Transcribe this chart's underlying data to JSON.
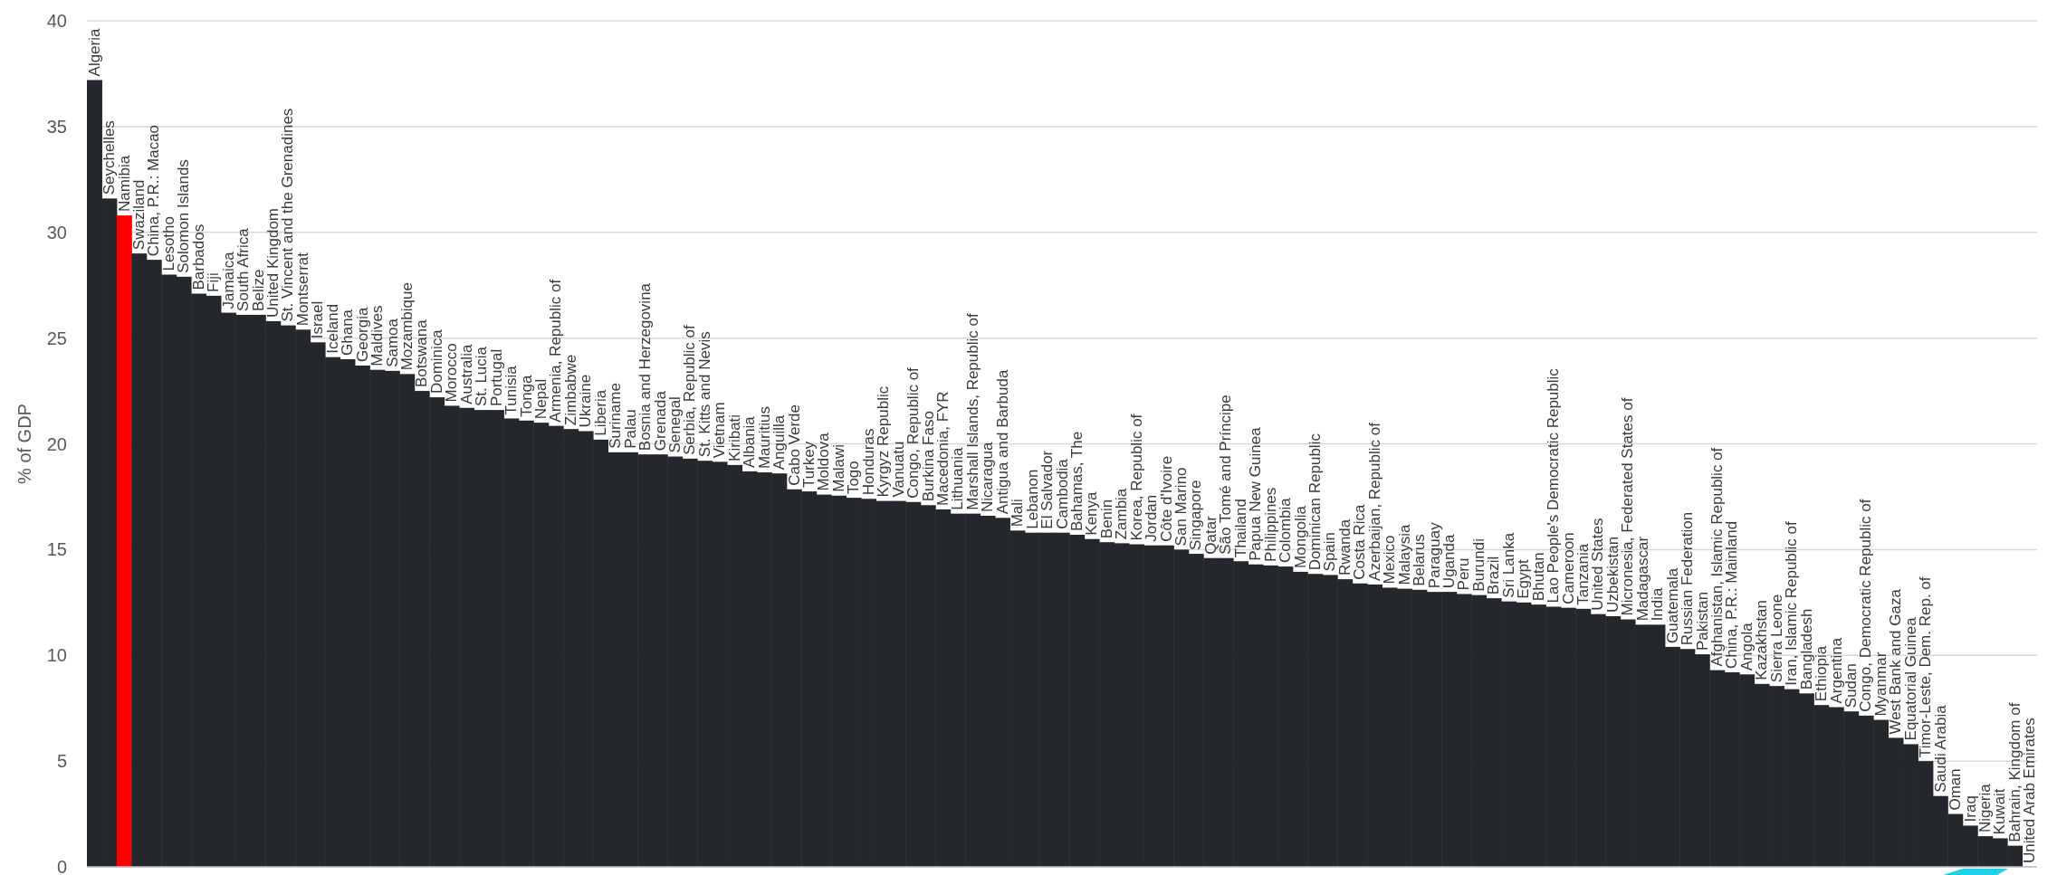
{
  "chart_data": {
    "type": "bar",
    "ylabel": "% of GDP",
    "ylim": [
      0,
      40
    ],
    "yticks": [
      0,
      5,
      10,
      15,
      20,
      25,
      30,
      35,
      40
    ],
    "grid": "y",
    "categories": [
      "Algeria",
      "Seychelles",
      "Namibia",
      "Swaziland",
      "China, P.R.: Macao",
      "Lesotho",
      "Solomon Islands",
      "Barbados",
      "Fiji",
      "Jamaica",
      "South Africa",
      "Belize",
      "United Kingdom",
      "St. Vincent and the Grenadines",
      "Montserrat",
      "Israel",
      "Iceland",
      "Ghana",
      "Georgia",
      "Maldives",
      "Samoa",
      "Mozambique",
      "Botswana",
      "Dominica",
      "Morocco",
      "Australia",
      "St. Lucia",
      "Portugal",
      "Tunisia",
      "Tonga",
      "Nepal",
      "Armenia, Republic of",
      "Zimbabwe",
      "Ukraine",
      "Liberia",
      "Suriname",
      "Palau",
      "Bosnia and Herzegovina",
      "Grenada",
      "Senegal",
      "Serbia, Republic of",
      "St. Kitts and Nevis",
      "Vietnam",
      "Kiribati",
      "Albania",
      "Mauritius",
      "Anguilla",
      "Cabo Verde",
      "Turkey",
      "Moldova",
      "Malawi",
      "Togo",
      "Honduras",
      "Kyrgyz Republic",
      "Vanuatu",
      "Congo, Republic of",
      "Burkina Faso",
      "Macedonia, FYR",
      "Lithuania",
      "Marshall Islands, Republic of",
      "Nicaragua",
      "Antigua and Barbuda",
      "Mali",
      "Lebanon",
      "El Salvador",
      "Cambodia",
      "Bahamas, The",
      "Kenya",
      "Benin",
      "Zambia",
      "Korea, Republic of",
      "Jordan",
      "Côte d'Ivoire",
      "San Marino",
      "Singapore",
      "Qatar",
      "São Tomé and Príncipe",
      "Thailand",
      "Papua New Guinea",
      "Philippines",
      "Colombia",
      "Mongolia",
      "Dominican Republic",
      "Spain",
      "Rwanda",
      "Costa Rica",
      "Azerbaijan, Republic of",
      "Mexico",
      "Malaysia",
      "Belarus",
      "Paraguay",
      "Uganda",
      "Peru",
      "Burundi",
      "Brazil",
      "Sri Lanka",
      "Egypt",
      "Bhutan",
      "Lao People's Democratic Republic",
      "Cameroon",
      "Tanzania",
      "United States",
      "Uzbekistan",
      "Micronesia, Federated States of",
      "Madagascar",
      "India",
      "Guatemala",
      "Russian Federation",
      "Pakistan",
      "Afghanistan, Islamic Republic of",
      "China, P.R.: Mainland",
      "Angola",
      "Kazakhstan",
      "Sierra Leone",
      "Iran, Islamic Republic of",
      "Bangladesh",
      "Ethiopia",
      "Argentina",
      "Sudan",
      "Congo, Democratic Republic of",
      "Myanmar",
      "West Bank and Gaza",
      "Equatorial Guinea",
      "Timor-Leste, Dem. Rep. of",
      "Saudi Arabia",
      "Oman",
      "Iraq",
      "Nigeria",
      "Kuwait",
      "Bahrain, Kingdom of",
      "United Arab Emirates"
    ],
    "values": [
      37.2,
      31.6,
      30.8,
      29.0,
      28.7,
      28.0,
      27.9,
      27.1,
      27.0,
      26.2,
      26.1,
      26.1,
      25.8,
      25.6,
      25.4,
      24.8,
      24.1,
      24.0,
      23.7,
      23.5,
      23.45,
      23.3,
      22.5,
      22.2,
      21.8,
      21.7,
      21.6,
      21.6,
      21.2,
      21.1,
      21.0,
      20.85,
      20.7,
      20.6,
      20.2,
      19.6,
      19.6,
      19.5,
      19.5,
      19.4,
      19.3,
      19.2,
      19.15,
      19.0,
      18.7,
      18.65,
      18.6,
      17.85,
      17.75,
      17.6,
      17.55,
      17.45,
      17.4,
      17.3,
      17.3,
      17.25,
      17.1,
      16.9,
      16.7,
      16.7,
      16.6,
      16.5,
      15.9,
      15.8,
      15.8,
      15.8,
      15.7,
      15.5,
      15.35,
      15.3,
      15.25,
      15.2,
      15.2,
      15.0,
      14.8,
      14.6,
      14.6,
      14.45,
      14.3,
      14.25,
      14.2,
      13.95,
      13.85,
      13.8,
      13.6,
      13.4,
      13.35,
      13.2,
      13.15,
      13.1,
      13.0,
      13.0,
      12.9,
      12.85,
      12.7,
      12.55,
      12.5,
      12.4,
      12.3,
      12.25,
      12.2,
      11.95,
      11.85,
      11.7,
      11.45,
      11.45,
      10.4,
      10.3,
      10.05,
      9.3,
      9.2,
      9.1,
      8.65,
      8.55,
      8.4,
      8.2,
      7.65,
      7.55,
      7.35,
      7.15,
      6.95,
      6.1,
      5.8,
      5.0,
      3.35,
      2.5,
      1.95,
      1.45,
      1.35,
      1.0,
      0
    ],
    "colors": [
      "#24272c",
      "#24272c",
      "#ff0000",
      "#24272c",
      "#24272c",
      "#24272c",
      "#24272c",
      "#24272c",
      "#24272c",
      "#24272c",
      "#24272c",
      "#24272c",
      "#24272c",
      "#24272c",
      "#24272c",
      "#24272c",
      "#24272c",
      "#24272c",
      "#24272c",
      "#24272c",
      "#24272c",
      "#24272c",
      "#24272c",
      "#24272c",
      "#24272c",
      "#24272c",
      "#24272c",
      "#24272c",
      "#24272c",
      "#24272c",
      "#24272c",
      "#24272c",
      "#24272c",
      "#24272c",
      "#24272c",
      "#24272c",
      "#24272c",
      "#24272c",
      "#24272c",
      "#24272c",
      "#24272c",
      "#24272c",
      "#24272c",
      "#24272c",
      "#24272c",
      "#24272c",
      "#24272c",
      "#24272c",
      "#24272c",
      "#24272c",
      "#24272c",
      "#24272c",
      "#24272c",
      "#24272c",
      "#24272c",
      "#24272c",
      "#24272c",
      "#24272c",
      "#24272c",
      "#24272c",
      "#24272c",
      "#24272c",
      "#24272c",
      "#24272c",
      "#24272c",
      "#24272c",
      "#24272c",
      "#24272c",
      "#24272c",
      "#24272c",
      "#24272c",
      "#24272c",
      "#24272c",
      "#24272c",
      "#24272c",
      "#24272c",
      "#24272c",
      "#24272c",
      "#24272c",
      "#24272c",
      "#24272c",
      "#24272c",
      "#24272c",
      "#24272c",
      "#24272c",
      "#24272c",
      "#24272c",
      "#24272c",
      "#24272c",
      "#24272c",
      "#24272c",
      "#24272c",
      "#24272c",
      "#24272c",
      "#24272c",
      "#24272c",
      "#24272c",
      "#24272c",
      "#24272c",
      "#24272c",
      "#24272c",
      "#24272c",
      "#24272c",
      "#24272c",
      "#24272c",
      "#24272c",
      "#24272c",
      "#24272c",
      "#24272c",
      "#24272c",
      "#24272c",
      "#24272c",
      "#24272c",
      "#24272c",
      "#24272c",
      "#24272c",
      "#24272c",
      "#24272c",
      "#24272c",
      "#24272c",
      "#24272c",
      "#24272c",
      "#24272c",
      "#24272c",
      "#24272c",
      "#24272c",
      "#24272c",
      "#24272c",
      "#24272c",
      "#24272c",
      "#24272c"
    ]
  }
}
